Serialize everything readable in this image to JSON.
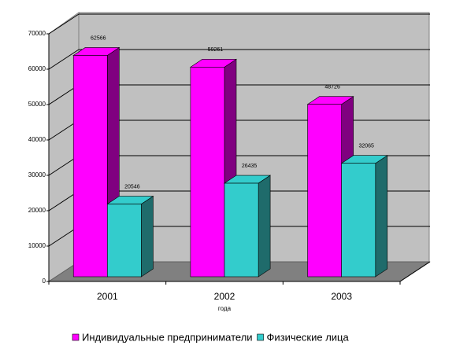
{
  "chart_data": {
    "type": "bar3d",
    "xlabel": "года",
    "categories": [
      "2001",
      "2002",
      "2003"
    ],
    "series": [
      {
        "name": "Индивидуальные предприниматели",
        "color": "#ff00ff",
        "side_color": "#800080",
        "values": [
          62566,
          59261,
          48726
        ]
      },
      {
        "name": "Физические лица",
        "color": "#33cccc",
        "side_color": "#1f6b6b",
        "values": [
          20546,
          26435,
          32065
        ]
      }
    ],
    "ylim": [
      0,
      70000
    ],
    "yticks": [
      0,
      10000,
      20000,
      30000,
      40000,
      50000,
      60000,
      70000
    ],
    "grid": true,
    "legend": "bottom"
  }
}
